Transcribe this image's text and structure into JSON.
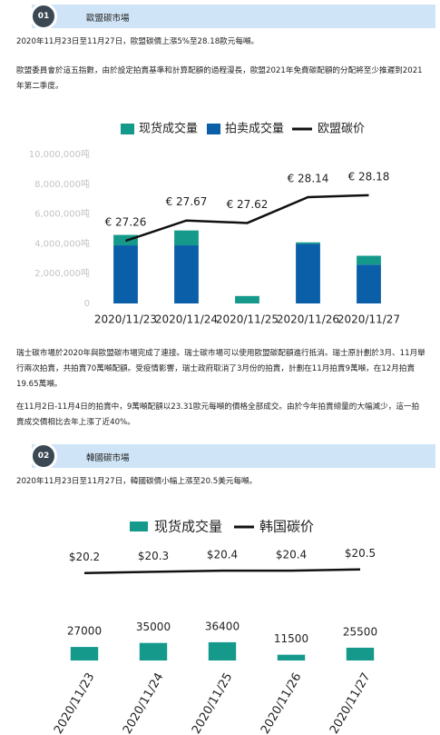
{
  "sections": [
    {
      "number": "01",
      "title": "歐盟碳市場",
      "intro": [
        "2020年11月23日至11月27日，歐盟碳價上漲5%至28.18歐元每噸。",
        "歐盟委員會於這五指數，由於設定拍賣基準和計算配額的過程漫長，歐盟2021年免費碳配額的分配將至少推遲到2021年第二季度。"
      ],
      "notes": [
        "瑞士碳市場於2020年與歐盟碳市場完成了連接。瑞士碳市場可以使用歐盟碳配額進行抵消。瑞士原計劃於3月、11月舉行兩次拍賣，共拍賣70萬噸配額。受疫情影響，瑞士政府取消了3月份的拍賣，計劃在11月拍賣9萬噸，在12月拍賣19.65萬噸。",
        "在11月2日-11月4日的拍賣中，9萬噸配額以23.31歐元每噸的價格全部成交。由於今年拍賣總量的大幅減少，這一拍賣成交價相比去年上漲了近40%。"
      ]
    },
    {
      "number": "02",
      "title": "韓國碳市場",
      "intro": [
        "2020年11月23日至11月27日，韓國碳價小幅上漲至20.5美元每噸。"
      ]
    }
  ],
  "chart_data": [
    {
      "type": "bar",
      "stacked": true,
      "categories": [
        "2020/11/23",
        "2020/11/24",
        "2020/11/25",
        "2020/11/26",
        "2020/11/27"
      ],
      "series": [
        {
          "name": "现货成交量",
          "color": "#14998b",
          "values": [
            700000,
            1000000,
            500000,
            100000,
            600000
          ]
        },
        {
          "name": "拍卖成交量",
          "color": "#0b5fa8",
          "values": [
            3900000,
            3900000,
            0,
            4000000,
            2600000
          ]
        },
        {
          "name": "欧盟碳价",
          "type": "line",
          "axis": "y2",
          "color": "#111111",
          "values": [
            27.26,
            27.67,
            27.62,
            28.14,
            28.18
          ],
          "value_labels": [
            "€ 27.26",
            "€ 27.67",
            "€ 27.62",
            "€ 28.14",
            "€ 28.18"
          ]
        }
      ],
      "ylim": [
        0,
        10000000
      ],
      "yticks": [
        0,
        {
          "value": 2000000,
          "label": "2,000,000吨"
        },
        {
          "value": 4000000,
          "label": "4,000,000吨"
        },
        {
          "value": 6000000,
          "label": "6,000,000吨"
        },
        {
          "value": 8000000,
          "label": "8,000,000吨"
        },
        {
          "value": 10000000,
          "label": "10,000,000吨"
        }
      ],
      "y2lim": [
        26,
        29
      ]
    },
    {
      "type": "bar",
      "categories": [
        "2020/11/23",
        "2020/11/24",
        "2020/11/25",
        "2020/11/26",
        "2020/11/27"
      ],
      "series": [
        {
          "name": "现货成交量",
          "color": "#14998b",
          "values": [
            27000,
            35000,
            36400,
            11500,
            25500
          ]
        },
        {
          "name": "韩国碳价",
          "type": "line",
          "axis": "y2",
          "color": "#111111",
          "values": [
            20.2,
            20.3,
            20.4,
            20.4,
            20.5
          ],
          "value_labels": [
            "$20.2",
            "$20.3",
            "$20.4",
            "$20.4",
            "$20.5"
          ]
        }
      ],
      "ylim": [
        0,
        230000
      ],
      "y2lim": [
        13,
        22.5
      ]
    }
  ]
}
